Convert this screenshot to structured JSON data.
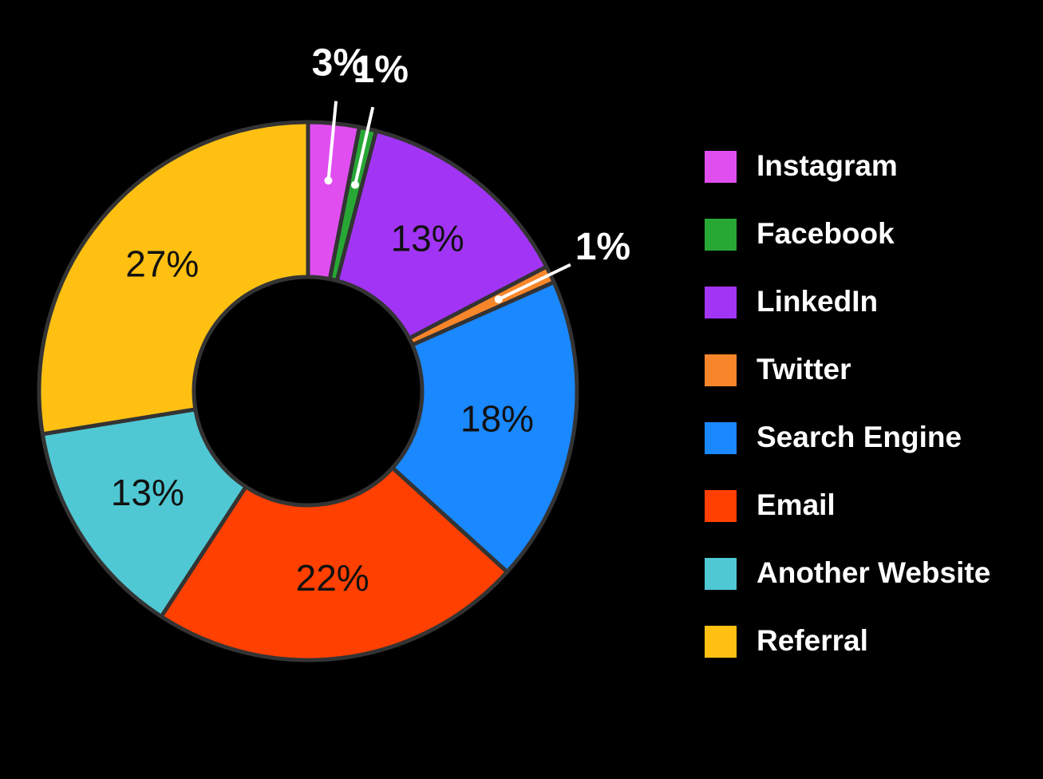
{
  "chart_data": {
    "type": "donut",
    "categories": [
      "Instagram",
      "Facebook",
      "LinkedIn",
      "Twitter",
      "Search Engine",
      "Email",
      "Another Website",
      "Referral"
    ],
    "values": [
      3,
      1,
      13,
      1,
      18,
      22,
      13,
      27
    ],
    "value_labels": [
      "3%",
      "1%",
      "13%",
      "1%",
      "18%",
      "22%",
      "13%",
      "27%"
    ],
    "colors": [
      "#e04ef0",
      "#27a835",
      "#a235f5",
      "#f7862a",
      "#1a88ff",
      "#ff4000",
      "#4fc8d3",
      "#ffc012"
    ],
    "legend": "right"
  }
}
